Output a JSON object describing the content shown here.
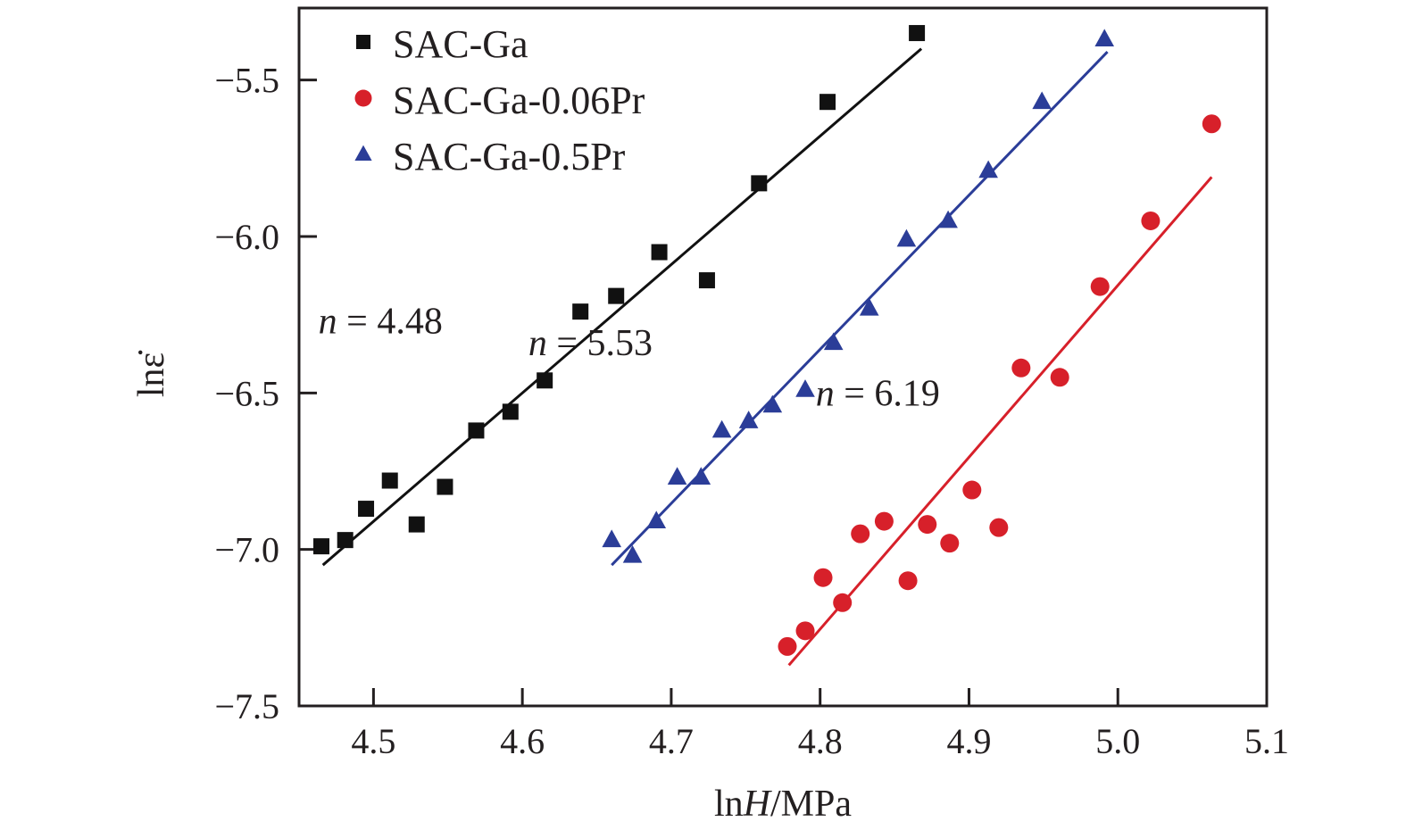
{
  "chart_data": {
    "type": "scatter",
    "title": "",
    "xlabel": "lnH/MPa",
    "xlabel_parts": {
      "prefix": "ln",
      "italic": "H",
      "suffix": "/MPa"
    },
    "ylabel": "lnε̇",
    "xlim": [
      4.45,
      5.1
    ],
    "ylim": [
      -7.5,
      -5.27
    ],
    "xticks": [
      4.5,
      4.6,
      4.7,
      4.8,
      4.9,
      5.0,
      5.1
    ],
    "xtick_labels": [
      "4.5",
      "4.6",
      "4.7",
      "4.8",
      "4.9",
      "5.0",
      "5.1"
    ],
    "yticks": [
      -5.5,
      -6.0,
      -6.5,
      -7.0,
      -7.5
    ],
    "ytick_labels": [
      "−5.5",
      "−6.0",
      "−6.5",
      "−7.0",
      "−7.5"
    ],
    "grid": false,
    "legend_position": "top-left",
    "series": [
      {
        "name": "SAC-Ga",
        "marker": "square",
        "color": "#111111",
        "x": [
          4.465,
          4.481,
          4.495,
          4.511,
          4.529,
          4.548,
          4.569,
          4.592,
          4.615,
          4.639,
          4.663,
          4.692,
          4.724,
          4.759,
          4.805,
          4.865
        ],
        "y": [
          -6.99,
          -6.97,
          -6.87,
          -6.78,
          -6.92,
          -6.8,
          -6.62,
          -6.56,
          -6.46,
          -6.24,
          -6.19,
          -6.05,
          -6.14,
          -5.83,
          -5.57,
          -5.35
        ],
        "fit": {
          "x": [
            4.466,
            4.868
          ],
          "y": [
            -7.05,
            -5.4
          ],
          "slope_label": "n = 4.48",
          "n": 4.48
        }
      },
      {
        "name": "SAC-Ga-0.06Pr",
        "marker": "circle",
        "color": "#d7202a",
        "x": [
          4.778,
          4.79,
          4.802,
          4.815,
          4.827,
          4.843,
          4.859,
          4.872,
          4.887,
          4.902,
          4.92,
          4.935,
          4.961,
          4.988,
          5.022,
          5.063
        ],
        "y": [
          -7.31,
          -7.26,
          -7.09,
          -7.17,
          -6.95,
          -6.91,
          -7.1,
          -6.92,
          -6.98,
          -6.81,
          -6.93,
          -6.42,
          -6.45,
          -6.16,
          -5.95,
          -5.64
        ],
        "fit": {
          "x": [
            4.779,
            5.063
          ],
          "y": [
            -7.37,
            -5.81
          ],
          "slope_label": "n = 6.19",
          "n": 6.19
        }
      },
      {
        "name": "SAC-Ga-0.5Pr",
        "marker": "triangle",
        "color": "#2b3d98",
        "x": [
          4.66,
          4.674,
          4.69,
          4.704,
          4.72,
          4.734,
          4.752,
          4.768,
          4.79,
          4.809,
          4.833,
          4.858,
          4.886,
          4.913,
          4.949,
          4.991
        ],
        "y": [
          -6.97,
          -7.02,
          -6.91,
          -6.77,
          -6.77,
          -6.62,
          -6.59,
          -6.54,
          -6.49,
          -6.34,
          -6.23,
          -6.01,
          -5.95,
          -5.79,
          -5.57,
          -5.37
        ],
        "fit": {
          "x": [
            4.66,
            4.993
          ],
          "y": [
            -7.05,
            -5.41
          ],
          "slope_label": "n = 5.53",
          "n": 5.53
        }
      }
    ],
    "annotations": [
      {
        "n_symbol": "n",
        "rest": " = 4.48",
        "x": 4.463,
        "y": -6.31,
        "series": "SAC-Ga"
      },
      {
        "n_symbol": "n",
        "rest": " = 5.53",
        "x": 4.604,
        "y": -6.38,
        "series": "SAC-Ga-0.5Pr"
      },
      {
        "n_symbol": "n",
        "rest": " = 6.19",
        "x": 4.797,
        "y": -6.54,
        "series": "SAC-Ga-0.06Pr"
      }
    ]
  }
}
